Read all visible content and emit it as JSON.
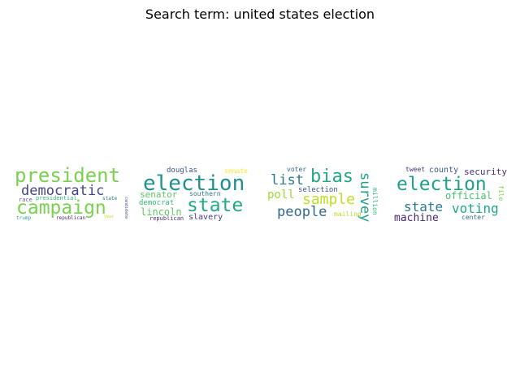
{
  "title": "Search term: united states election",
  "clouds": [
    {
      "words": [
        {
          "text": "president",
          "color": "#7ad151"
        },
        {
          "text": "democratic",
          "color": "#414487"
        },
        {
          "text": "campaign",
          "color": "#7ad151"
        },
        {
          "text": "race",
          "color": "#5c5ba3"
        },
        {
          "text": "presidential",
          "color": "#35b779"
        },
        {
          "text": "state",
          "color": "#2a788e"
        },
        {
          "text": "trump",
          "color": "#2a9d8f"
        },
        {
          "text": "republican",
          "color": "#482878"
        },
        {
          "text": "year",
          "color": "#bddf26"
        },
        {
          "text": "candidate",
          "color": "#3b528b"
        }
      ]
    },
    {
      "words": [
        {
          "text": "douglas",
          "color": "#3b528b"
        },
        {
          "text": "senate",
          "color": "#fde725"
        },
        {
          "text": "election",
          "color": "#21908d"
        },
        {
          "text": "senator",
          "color": "#5ec962"
        },
        {
          "text": "democrat",
          "color": "#35b779"
        },
        {
          "text": "southern",
          "color": "#2a788e"
        },
        {
          "text": "state",
          "color": "#22a884"
        },
        {
          "text": "lincoln",
          "color": "#5ec962"
        },
        {
          "text": "republican",
          "color": "#482878"
        },
        {
          "text": "slavery",
          "color": "#443983"
        }
      ]
    },
    {
      "words": [
        {
          "text": "voter",
          "color": "#31688e"
        },
        {
          "text": "bias",
          "color": "#22a884"
        },
        {
          "text": "list",
          "color": "#2a788e"
        },
        {
          "text": "survey",
          "color": "#1fa187"
        },
        {
          "text": "selection",
          "color": "#3b528b"
        },
        {
          "text": "poll",
          "color": "#a0da39"
        },
        {
          "text": "sample",
          "color": "#bddf26"
        },
        {
          "text": "people",
          "color": "#31688e"
        },
        {
          "text": "mailing",
          "color": "#b5de2b"
        },
        {
          "text": "million",
          "color": "#35b779"
        }
      ]
    },
    {
      "words": [
        {
          "text": "tweet",
          "color": "#46327e"
        },
        {
          "text": "county",
          "color": "#3b528b"
        },
        {
          "text": "security",
          "color": "#472d7b"
        },
        {
          "text": "election",
          "color": "#1fa187"
        },
        {
          "text": "official",
          "color": "#4ac16d"
        },
        {
          "text": "file",
          "color": "#7ad151"
        },
        {
          "text": "state",
          "color": "#2a788e"
        },
        {
          "text": "voting",
          "color": "#22a884"
        },
        {
          "text": "machine",
          "color": "#482878"
        },
        {
          "text": "center",
          "color": "#31688e"
        }
      ]
    }
  ]
}
